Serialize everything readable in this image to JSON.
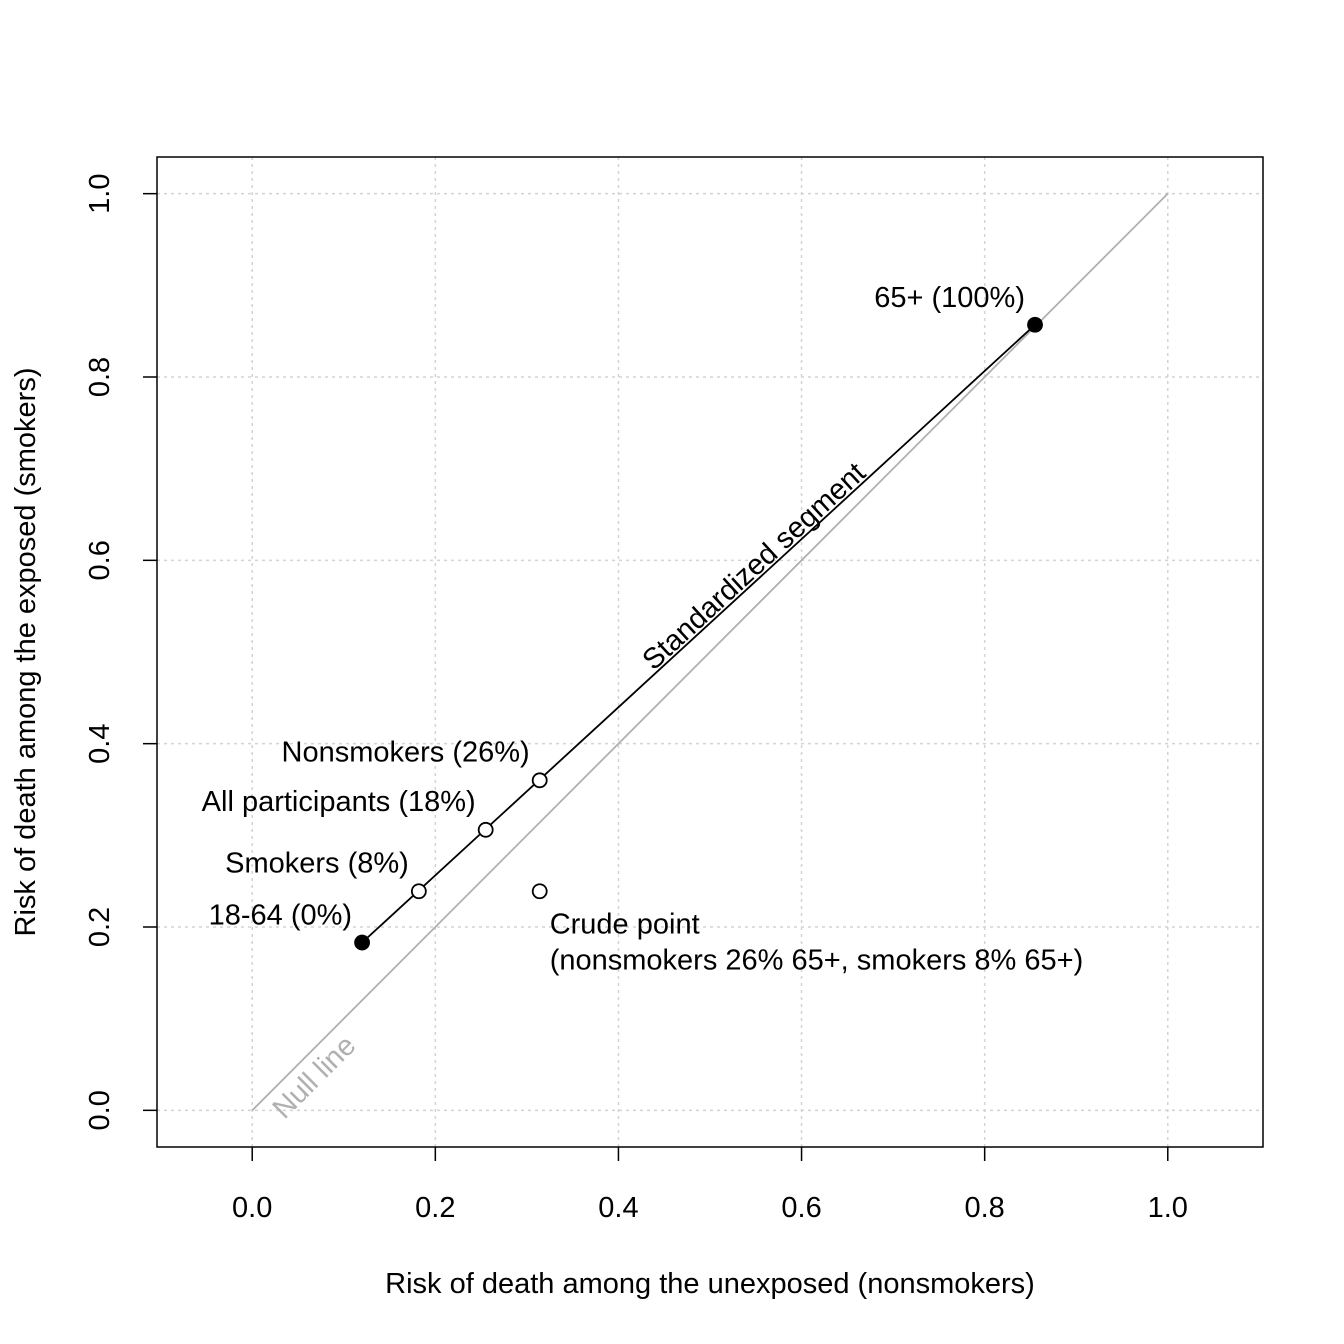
{
  "chart_data": {
    "type": "scatter",
    "xlabel": "Risk of death among the unexposed (nonsmokers)",
    "ylabel": "Risk of death among the exposed (smokers)",
    "xlim": [
      -0.104,
      1.104
    ],
    "ylim": [
      -0.04,
      1.04
    ],
    "x_ticks": [
      0.0,
      0.2,
      0.4,
      0.6,
      0.8,
      1.0
    ],
    "y_ticks": [
      0.0,
      0.2,
      0.4,
      0.6,
      0.8,
      1.0
    ],
    "x_tick_labels": [
      "0.0",
      "0.2",
      "0.4",
      "0.6",
      "0.8",
      "1.0"
    ],
    "y_tick_labels": [
      "0.0",
      "0.2",
      "0.4",
      "0.6",
      "0.8",
      "1.0"
    ],
    "grid": true,
    "null_line": {
      "label": "Null line",
      "from": [
        0,
        0
      ],
      "to": [
        1,
        1
      ],
      "color": "#b0b0b0"
    },
    "standardized_segment": {
      "label": "Standardized segment",
      "from": [
        0.12,
        0.183
      ],
      "to": [
        0.855,
        0.857
      ],
      "color": "#000000"
    },
    "points": [
      {
        "label": "18-64 (0%)",
        "x": 0.12,
        "y": 0.183,
        "filled": true
      },
      {
        "label": "Smokers (8%)",
        "x": 0.182,
        "y": 0.239,
        "filled": false
      },
      {
        "label": "All participants (18%)",
        "x": 0.255,
        "y": 0.306,
        "filled": false
      },
      {
        "label": "Nonsmokers (26%)",
        "x": 0.314,
        "y": 0.36,
        "filled": false
      },
      {
        "label": "65+ (100%)",
        "x": 0.855,
        "y": 0.857,
        "filled": true
      },
      {
        "label": "Crude point",
        "label2": "(nonsmokers 26% 65+, smokers 8% 65+)",
        "x": 0.314,
        "y": 0.239,
        "filled": false
      }
    ]
  }
}
